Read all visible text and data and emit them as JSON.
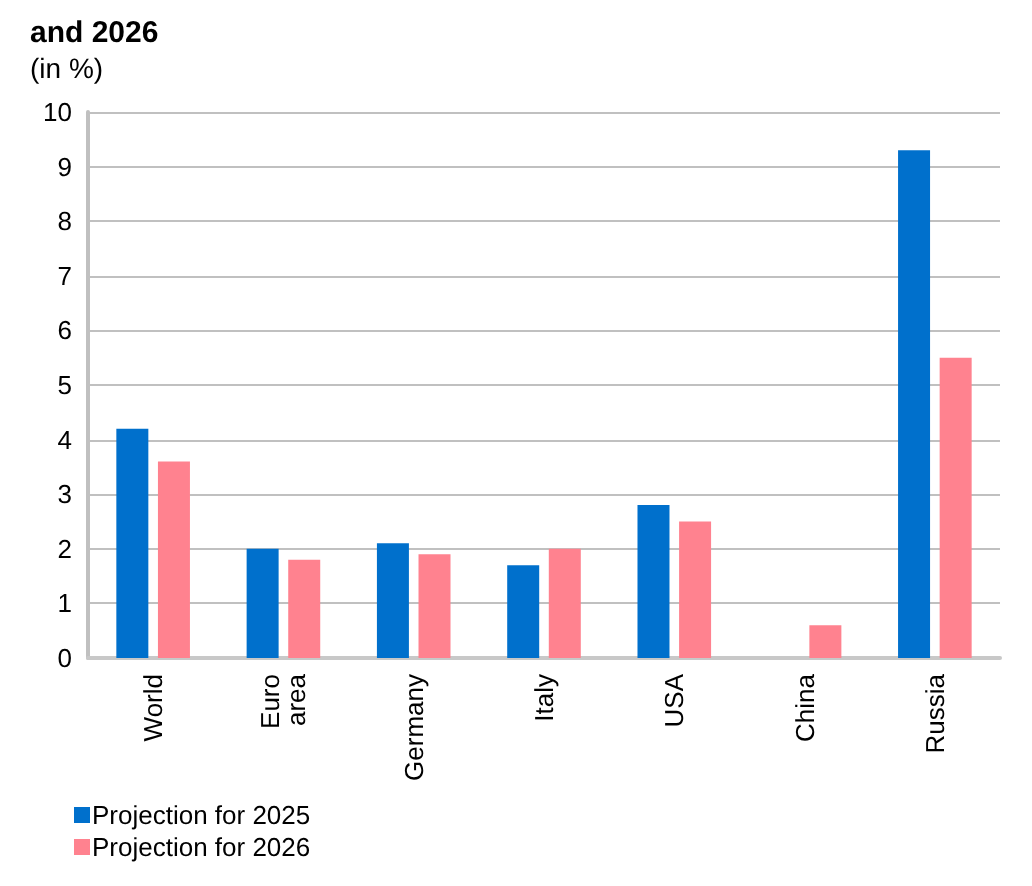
{
  "chart_data": {
    "type": "bar",
    "title": "and 2026",
    "subtitle": "(in %)",
    "categories": [
      "World",
      "Euro area",
      "Germany",
      "Italy",
      "USA",
      "China",
      "Russia"
    ],
    "series": [
      {
        "name": "Projection for 2025",
        "color": "#0070cc",
        "values": [
          4.2,
          2.0,
          2.1,
          1.7,
          2.8,
          null,
          9.3
        ]
      },
      {
        "name": "Projection for 2026",
        "color": "#ff828f",
        "values": [
          3.6,
          1.8,
          1.9,
          2.0,
          2.5,
          0.6,
          5.5
        ]
      }
    ],
    "ylim": [
      0,
      10
    ],
    "yticks": [
      0,
      1,
      2,
      3,
      4,
      5,
      6,
      7,
      8,
      9,
      10
    ],
    "grid": "y",
    "legend": "bottom left"
  }
}
